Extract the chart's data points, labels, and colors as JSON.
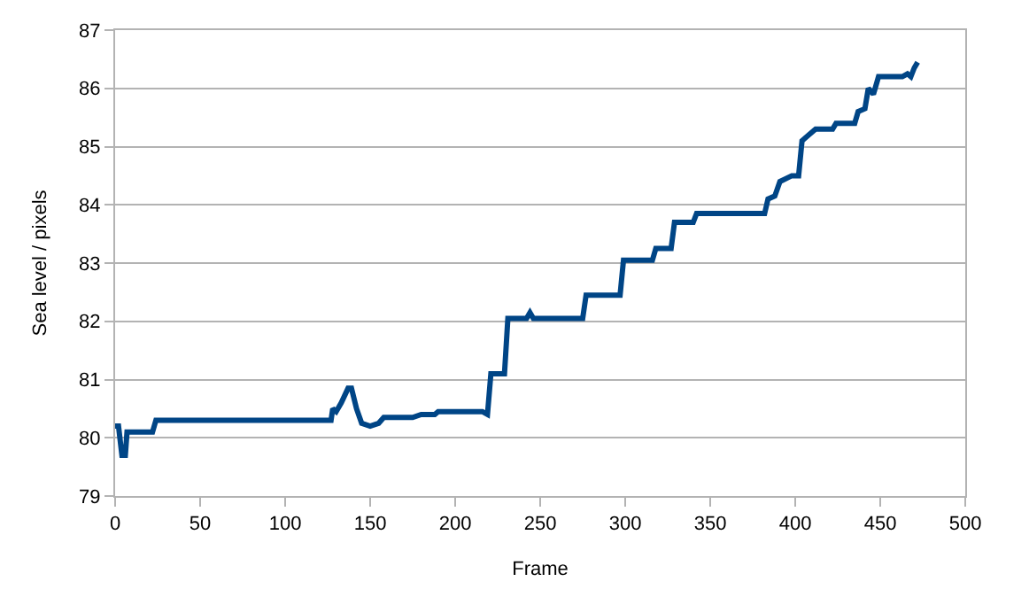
{
  "chart_data": {
    "type": "line",
    "xlabel": "Frame",
    "ylabel": "Sea level / pixels",
    "x": [
      0,
      2,
      4,
      6,
      7,
      10,
      22,
      24,
      127,
      128,
      130,
      133,
      137,
      139,
      142,
      145,
      150,
      155,
      158,
      165,
      175,
      180,
      188,
      190,
      216,
      219,
      221,
      229,
      231,
      242,
      244,
      246,
      275,
      277,
      297,
      299,
      316,
      318,
      327,
      329,
      340,
      342,
      382,
      384,
      388,
      391,
      398,
      402,
      404,
      408,
      412,
      422,
      424,
      435,
      437,
      441,
      443,
      446,
      449,
      463,
      466,
      468,
      470,
      472
    ],
    "series": [
      {
        "color": "#004586",
        "values": [
          80.2,
          80.2,
          79.7,
          79.7,
          80.1,
          80.1,
          80.1,
          80.3,
          80.3,
          80.5,
          80.45,
          80.6,
          80.85,
          80.85,
          80.5,
          80.25,
          80.2,
          80.25,
          80.35,
          80.35,
          80.35,
          80.4,
          80.4,
          80.45,
          80.45,
          80.4,
          81.1,
          81.1,
          82.05,
          82.05,
          82.15,
          82.05,
          82.05,
          82.45,
          82.45,
          83.05,
          83.05,
          83.25,
          83.25,
          83.7,
          83.7,
          83.85,
          83.85,
          84.1,
          84.15,
          84.4,
          84.5,
          84.5,
          85.1,
          85.2,
          85.3,
          85.3,
          85.4,
          85.4,
          85.6,
          85.65,
          86.0,
          85.9,
          86.2,
          86.2,
          86.25,
          86.2,
          86.35,
          86.45
        ]
      }
    ],
    "xlim": [
      0,
      500
    ],
    "xticks": [
      0,
      50,
      100,
      150,
      200,
      250,
      300,
      350,
      400,
      450,
      500
    ],
    "ylim": [
      79,
      87
    ],
    "yticks": [
      79,
      80,
      81,
      82,
      83,
      84,
      85,
      86,
      87
    ],
    "grid": "y",
    "legend": false,
    "marker": "none",
    "line_style": "solid"
  }
}
